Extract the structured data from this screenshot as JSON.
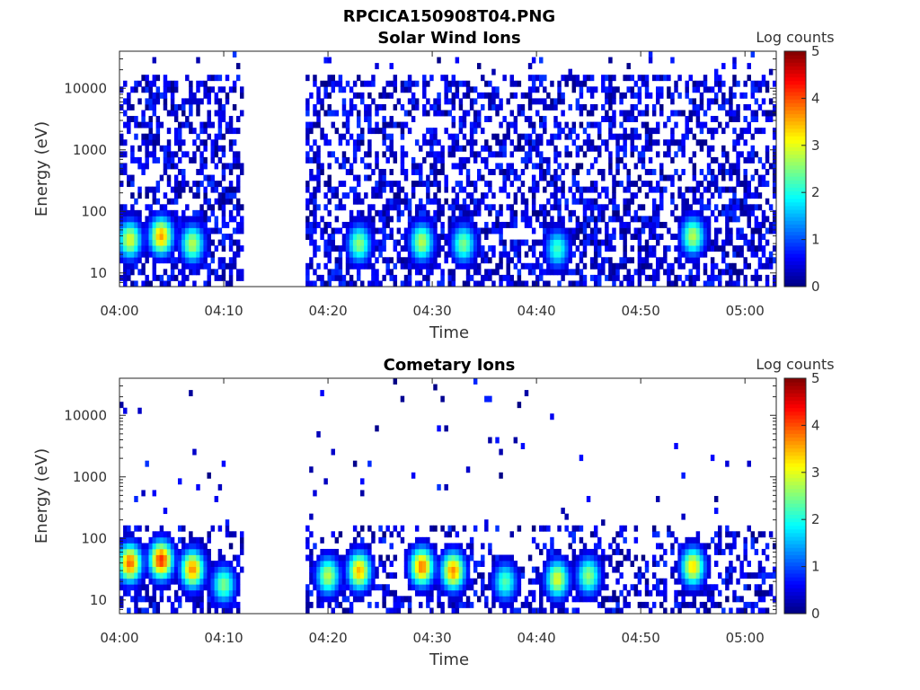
{
  "figure_title": "RPCICA150908T04.PNG",
  "chart_data": [
    {
      "type": "heatmap",
      "title": "Solar Wind Ions",
      "xlabel": "Time",
      "ylabel": "Energy (eV)",
      "colorbar_label": "Log counts",
      "x_ticks": [
        "04:00",
        "04:10",
        "04:20",
        "04:30",
        "04:40",
        "04:50",
        "05:00"
      ],
      "x_range": [
        "04:00",
        "05:03"
      ],
      "y_scale": "log",
      "y_ticks": [
        "10",
        "100",
        "1000",
        "10000"
      ],
      "y_range": [
        6,
        40000
      ],
      "color_range": [
        0,
        5
      ],
      "colorbar_ticks": [
        "0",
        "1",
        "2",
        "3",
        "4",
        "5"
      ],
      "colormap": "jet",
      "data_gap": [
        "04:12",
        "04:18"
      ],
      "peaks": [
        {
          "time": "04:01",
          "energy": 35,
          "log_counts": 3.0
        },
        {
          "time": "04:04",
          "energy": 40,
          "log_counts": 3.6
        },
        {
          "time": "04:07",
          "energy": 30,
          "log_counts": 2.8
        },
        {
          "time": "04:23",
          "energy": 30,
          "log_counts": 2.6
        },
        {
          "time": "04:29",
          "energy": 32,
          "log_counts": 2.8
        },
        {
          "time": "04:33",
          "energy": 30,
          "log_counts": 2.5
        },
        {
          "time": "04:42",
          "energy": 25,
          "log_counts": 2.2
        },
        {
          "time": "04:55",
          "energy": 40,
          "log_counts": 2.8
        }
      ]
    },
    {
      "type": "heatmap",
      "title": "Cometary Ions",
      "xlabel": "Time",
      "ylabel": "Energy (eV)",
      "colorbar_label": "Log counts",
      "x_ticks": [
        "04:00",
        "04:10",
        "04:20",
        "04:30",
        "04:40",
        "04:50",
        "05:00"
      ],
      "x_range": [
        "04:00",
        "05:03"
      ],
      "y_scale": "log",
      "y_ticks": [
        "10",
        "100",
        "1000",
        "10000"
      ],
      "y_range": [
        6,
        40000
      ],
      "color_range": [
        0,
        5
      ],
      "colorbar_ticks": [
        "0",
        "1",
        "2",
        "3",
        "4",
        "5"
      ],
      "colormap": "jet",
      "data_gap": [
        "04:12",
        "04:18"
      ],
      "peaks": [
        {
          "time": "04:01",
          "energy": 40,
          "log_counts": 3.9
        },
        {
          "time": "04:04",
          "energy": 45,
          "log_counts": 4.2
        },
        {
          "time": "04:07",
          "energy": 32,
          "log_counts": 3.7
        },
        {
          "time": "04:10",
          "energy": 18,
          "log_counts": 2.5
        },
        {
          "time": "04:20",
          "energy": 25,
          "log_counts": 2.8
        },
        {
          "time": "04:23",
          "energy": 30,
          "log_counts": 3.5
        },
        {
          "time": "04:29",
          "energy": 35,
          "log_counts": 3.8
        },
        {
          "time": "04:32",
          "energy": 30,
          "log_counts": 3.7
        },
        {
          "time": "04:37",
          "energy": 20,
          "log_counts": 2.3
        },
        {
          "time": "04:42",
          "energy": 22,
          "log_counts": 3.0
        },
        {
          "time": "04:45",
          "energy": 25,
          "log_counts": 2.6
        },
        {
          "time": "04:55",
          "energy": 35,
          "log_counts": 3.3
        }
      ]
    }
  ]
}
